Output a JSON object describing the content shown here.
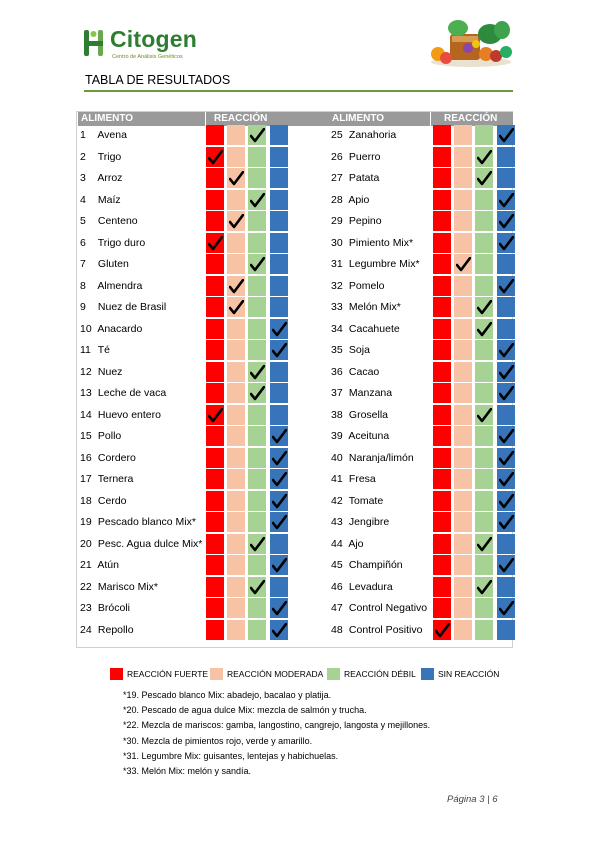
{
  "header": {
    "logo_name": "Citogen",
    "logo_subtitle": "Centro de Análisis Genéticos",
    "page_title": "TABLA DE RESULTADOS"
  },
  "table": {
    "col_food": "ALIMENTO",
    "col_reaction": "REACCIÓN",
    "left_rows": [
      {
        "num": "1",
        "name": "Avena",
        "level": "weak"
      },
      {
        "num": "2",
        "name": "Trigo",
        "level": "strong"
      },
      {
        "num": "3",
        "name": "Arroz",
        "level": "moderate"
      },
      {
        "num": "4",
        "name": "Maíz",
        "level": "weak"
      },
      {
        "num": "5",
        "name": "Centeno",
        "level": "moderate"
      },
      {
        "num": "6",
        "name": "Trigo duro",
        "level": "strong"
      },
      {
        "num": "7",
        "name": "Gluten",
        "level": "weak"
      },
      {
        "num": "8",
        "name": "Almendra",
        "level": "moderate"
      },
      {
        "num": "9",
        "name": "Nuez de Brasil",
        "level": "moderate"
      },
      {
        "num": "10",
        "name": "Anacardo",
        "level": "none"
      },
      {
        "num": "11",
        "name": "Té",
        "level": "none"
      },
      {
        "num": "12",
        "name": "Nuez",
        "level": "weak"
      },
      {
        "num": "13",
        "name": "Leche de vaca",
        "level": "weak"
      },
      {
        "num": "14",
        "name": "Huevo entero",
        "level": "strong"
      },
      {
        "num": "15",
        "name": "Pollo",
        "level": "none"
      },
      {
        "num": "16",
        "name": "Cordero",
        "level": "none"
      },
      {
        "num": "17",
        "name": "Ternera",
        "level": "none"
      },
      {
        "num": "18",
        "name": "Cerdo",
        "level": "none"
      },
      {
        "num": "19",
        "name": "Pescado blanco Mix*",
        "level": "none"
      },
      {
        "num": "20",
        "name": "Pesc. Agua dulce Mix*",
        "level": "weak"
      },
      {
        "num": "21",
        "name": "Atún",
        "level": "none"
      },
      {
        "num": "22",
        "name": "Marisco Mix*",
        "level": "weak"
      },
      {
        "num": "23",
        "name": "Brócoli",
        "level": "none"
      },
      {
        "num": "24",
        "name": "Repollo",
        "level": "none"
      }
    ],
    "right_rows": [
      {
        "num": "25",
        "name": "Zanahoria",
        "level": "none"
      },
      {
        "num": "26",
        "name": "Puerro",
        "level": "weak"
      },
      {
        "num": "27",
        "name": "Patata",
        "level": "weak"
      },
      {
        "num": "28",
        "name": "Apio",
        "level": "none"
      },
      {
        "num": "29",
        "name": "Pepino",
        "level": "none"
      },
      {
        "num": "30",
        "name": "Pimiento Mix*",
        "level": "none"
      },
      {
        "num": "31",
        "name": "Legumbre Mix*",
        "level": "moderate"
      },
      {
        "num": "32",
        "name": "Pomelo",
        "level": "none"
      },
      {
        "num": "33",
        "name": "Melón Mix*",
        "level": "weak"
      },
      {
        "num": "34",
        "name": "Cacahuete",
        "level": "weak"
      },
      {
        "num": "35",
        "name": "Soja",
        "level": "none"
      },
      {
        "num": "36",
        "name": "Cacao",
        "level": "none"
      },
      {
        "num": "37",
        "name": "Manzana",
        "level": "none"
      },
      {
        "num": "38",
        "name": "Grosella",
        "level": "weak"
      },
      {
        "num": "39",
        "name": "Aceituna",
        "level": "none"
      },
      {
        "num": "40",
        "name": "Naranja/limón",
        "level": "none"
      },
      {
        "num": "41",
        "name": "Fresa",
        "level": "none"
      },
      {
        "num": "42",
        "name": "Tomate",
        "level": "none"
      },
      {
        "num": "43",
        "name": "Jengibre",
        "level": "none"
      },
      {
        "num": "44",
        "name": "Ajo",
        "level": "weak"
      },
      {
        "num": "45",
        "name": "Champiñón",
        "level": "none"
      },
      {
        "num": "46",
        "name": "Levadura",
        "level": "weak"
      },
      {
        "num": "47",
        "name": "Control Negativo",
        "level": "none"
      },
      {
        "num": "48",
        "name": "Control Positivo",
        "level": "strong"
      }
    ]
  },
  "legend": [
    {
      "key": "strong",
      "label": "REACCIÓN FUERTE",
      "color": "#ff0000"
    },
    {
      "key": "moderate",
      "label": "REACCIÓN MODERADA",
      "color": "#f8c2a4"
    },
    {
      "key": "weak",
      "label": "REACCIÓN DÉBIL",
      "color": "#a6d394"
    },
    {
      "key": "none",
      "label": "SIN REACCIÓN",
      "color": "#3774ba"
    }
  ],
  "notes": [
    "*19. Pescado blanco Mix: abadejo, bacalao y platija.",
    "*20. Pescado de agua dulce Mix: mezcla de salmón y trucha.",
    "*22. Mezcla de mariscos: gamba, langostino, cangrejo, langosta y mejillones.",
    "*30. Mezcla de pimientos rojo, verde y amarillo.",
    "*31. Legumbre Mix: guisantes, lentejas y habichuelas.",
    "*33. Melón Mix: melón y sandía."
  ],
  "footer": {
    "page_label": "Página 3 | 6"
  }
}
